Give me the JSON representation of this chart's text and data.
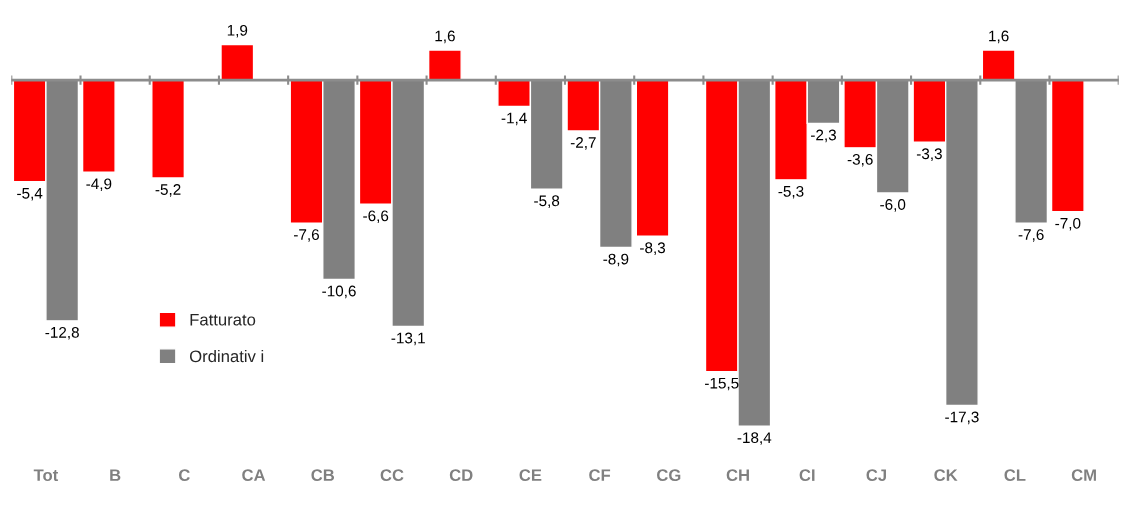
{
  "chart_data": {
    "type": "bar",
    "categories": [
      "Tot",
      "B",
      "C",
      "CA",
      "CB",
      "CC",
      "CD",
      "CE",
      "CF",
      "CG",
      "CH",
      "CI",
      "CJ",
      "CK",
      "CL",
      "CM"
    ],
    "series": [
      {
        "name": "Fatturato",
        "color": "#ff0000",
        "values": [
          -5.4,
          -4.9,
          -5.2,
          1.9,
          -7.6,
          -6.6,
          1.6,
          -1.4,
          -2.7,
          -8.3,
          -15.5,
          -5.3,
          -3.6,
          -3.3,
          1.6,
          -7.0
        ],
        "value_labels": [
          "-5,4",
          "-4,9",
          "-5,2",
          "1,9",
          "-7,6",
          "-6,6",
          "1,6",
          "-1,4",
          "-2,7",
          "-8,3",
          "-15,5",
          "-5,3",
          "-3,6",
          "-3,3",
          "1,6",
          "-7,0"
        ]
      },
      {
        "name": "Ordinativ i",
        "color": "#808080",
        "values": [
          -12.8,
          null,
          null,
          null,
          -10.6,
          -13.1,
          null,
          -5.8,
          -8.9,
          null,
          -18.4,
          -2.3,
          -6.0,
          -17.3,
          -7.6,
          null
        ],
        "value_labels": [
          "-12,8",
          null,
          null,
          null,
          "-10,6",
          "-13,1",
          null,
          "-5,8",
          "-8,9",
          null,
          "-18,4",
          "-2,3",
          "-6,0",
          "-17,3",
          "-7,6",
          null
        ]
      }
    ],
    "legend": "left",
    "grid": false
  }
}
